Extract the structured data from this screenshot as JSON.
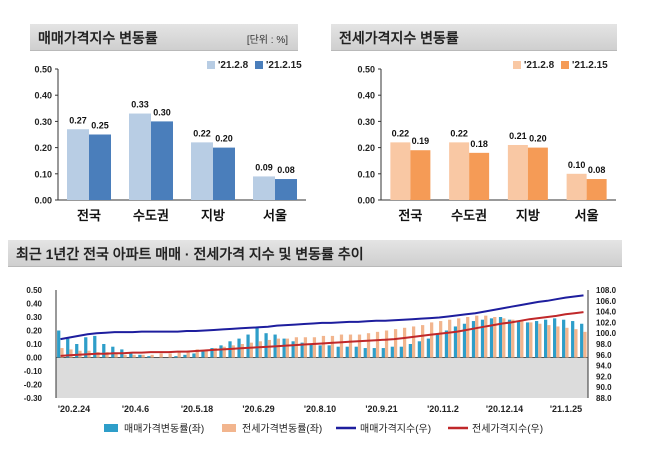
{
  "panels": {
    "sale": {
      "title": "매매가격지수 변동률",
      "unit": "[단위 : %]"
    },
    "jeonse": {
      "title": "전세가격지수 변동률"
    },
    "trend": {
      "title": "최근 1년간 전국 아파트 매매 · 전세가격 지수 및 변동률 추이"
    }
  },
  "chart_data": [
    {
      "type": "bar",
      "title": "매매가격지수 변동률",
      "unit": "[단위 : %]",
      "categories": [
        "전국",
        "수도권",
        "지방",
        "서울"
      ],
      "series": [
        {
          "name": "'21.2.8",
          "values": [
            0.27,
            0.33,
            0.22,
            0.09
          ],
          "color": "#b8cde4"
        },
        {
          "name": "'21.2.15",
          "values": [
            0.25,
            0.3,
            0.2,
            0.08
          ],
          "color": "#4a7ebb"
        }
      ],
      "yticks": [
        "0.00",
        "0.10",
        "0.20",
        "0.30",
        "0.40",
        "0.50"
      ],
      "ylim": [
        0,
        0.5
      ],
      "legend": "top-right"
    },
    {
      "type": "bar",
      "title": "전세가격지수 변동률",
      "categories": [
        "전국",
        "수도권",
        "지방",
        "서울"
      ],
      "series": [
        {
          "name": "'21.2.8",
          "values": [
            0.22,
            0.22,
            0.21,
            0.1
          ],
          "color": "#f9c8a4"
        },
        {
          "name": "'21.2.15",
          "values": [
            0.19,
            0.18,
            0.2,
            0.08
          ],
          "color": "#f59b56"
        }
      ],
      "yticks": [
        "0.00",
        "0.10",
        "0.20",
        "0.30",
        "0.40",
        "0.50"
      ],
      "ylim": [
        0,
        0.5
      ],
      "legend": "top-right"
    },
    {
      "type": "bar",
      "title": "최근 1년간 전국 아파트 매매 · 전세가격 지수 및 변동률 추이",
      "x_labels": [
        "'20.2.24",
        "'20.4.6",
        "'20.5.18",
        "'20.6.29",
        "'20.8.10",
        "'20.9.21",
        "'20.11.2",
        "'20.12.14",
        "'21.1.25"
      ],
      "left_ticks": [
        "-0.30",
        "-0.20",
        "-0.10",
        "0.00",
        "0.10",
        "0.20",
        "0.30",
        "0.40",
        "0.50"
      ],
      "right_ticks": [
        "88.0",
        "90.0",
        "92.0",
        "94.0",
        "96.0",
        "98.0",
        "100.0",
        "102.0",
        "104.0",
        "106.0",
        "108.0"
      ],
      "left_ylim": [
        -0.3,
        0.5
      ],
      "right_ylim": [
        88,
        108
      ],
      "series": [
        {
          "name": "매매가격변동률(좌)",
          "kind": "bar",
          "color": "#2e9ec9",
          "values": [
            0.2,
            0.14,
            0.1,
            0.15,
            0.16,
            0.1,
            0.08,
            0.06,
            0.04,
            0.02,
            0.01,
            0.0,
            0.0,
            0.01,
            0.02,
            0.03,
            0.05,
            0.07,
            0.09,
            0.12,
            0.14,
            0.17,
            0.22,
            0.18,
            0.17,
            0.14,
            0.12,
            0.11,
            0.1,
            0.09,
            0.09,
            0.08,
            0.08,
            0.08,
            0.07,
            0.07,
            0.07,
            0.08,
            0.08,
            0.1,
            0.12,
            0.14,
            0.17,
            0.2,
            0.23,
            0.25,
            0.27,
            0.28,
            0.29,
            0.3,
            0.28,
            0.27,
            0.26,
            0.27,
            0.28,
            0.29,
            0.28,
            0.27,
            0.25
          ]
        },
        {
          "name": "전세가격변동률(좌)",
          "kind": "bar",
          "color": "#f2b58e",
          "values": [
            0.07,
            0.06,
            0.05,
            0.05,
            0.04,
            0.04,
            0.03,
            0.02,
            0.02,
            0.02,
            0.02,
            0.03,
            0.03,
            0.04,
            0.05,
            0.06,
            0.06,
            0.07,
            0.08,
            0.09,
            0.1,
            0.11,
            0.12,
            0.13,
            0.14,
            0.14,
            0.15,
            0.15,
            0.15,
            0.16,
            0.16,
            0.17,
            0.17,
            0.17,
            0.18,
            0.19,
            0.2,
            0.21,
            0.22,
            0.23,
            0.24,
            0.26,
            0.27,
            0.28,
            0.29,
            0.3,
            0.31,
            0.31,
            0.3,
            0.29,
            0.28,
            0.27,
            0.26,
            0.25,
            0.24,
            0.23,
            0.22,
            0.21,
            0.19
          ]
        },
        {
          "name": "매매가격지수(우)",
          "kind": "line",
          "color": "#1e1e9e",
          "values": [
            98.9,
            99.2,
            99.5,
            99.8,
            100.0,
            100.1,
            100.2,
            100.2,
            100.2,
            100.3,
            100.3,
            100.3,
            100.3,
            100.3,
            100.4,
            100.4,
            100.5,
            100.6,
            100.7,
            100.8,
            100.9,
            101.0,
            101.1,
            101.2,
            101.4,
            101.5,
            101.6,
            101.7,
            101.8,
            101.9,
            101.9,
            102.0,
            102.1,
            102.1,
            102.2,
            102.3,
            102.3,
            102.4,
            102.5,
            102.6,
            102.7,
            102.8,
            102.9,
            103.1,
            103.3,
            103.5,
            103.7,
            104.0,
            104.3,
            104.6,
            104.9,
            105.2,
            105.5,
            105.8,
            106.0,
            106.3,
            106.6,
            106.8,
            107.0
          ]
        },
        {
          "name": "전세가격지수(우)",
          "kind": "line",
          "color": "#c0282a",
          "values": [
            95.8,
            95.9,
            96.0,
            96.1,
            96.2,
            96.2,
            96.3,
            96.3,
            96.4,
            96.4,
            96.5,
            96.5,
            96.5,
            96.6,
            96.6,
            96.7,
            96.8,
            96.9,
            97.0,
            97.1,
            97.2,
            97.3,
            97.4,
            97.5,
            97.6,
            97.7,
            97.8,
            97.9,
            98.0,
            98.1,
            98.2,
            98.3,
            98.4,
            98.5,
            98.6,
            98.7,
            98.8,
            98.9,
            99.1,
            99.3,
            99.5,
            99.7,
            99.9,
            100.1,
            100.3,
            100.6,
            100.9,
            101.2,
            101.5,
            101.8,
            102.0,
            102.3,
            102.6,
            102.8,
            103.0,
            103.2,
            103.5,
            103.7,
            103.9
          ]
        }
      ],
      "legend": "bottom"
    }
  ]
}
